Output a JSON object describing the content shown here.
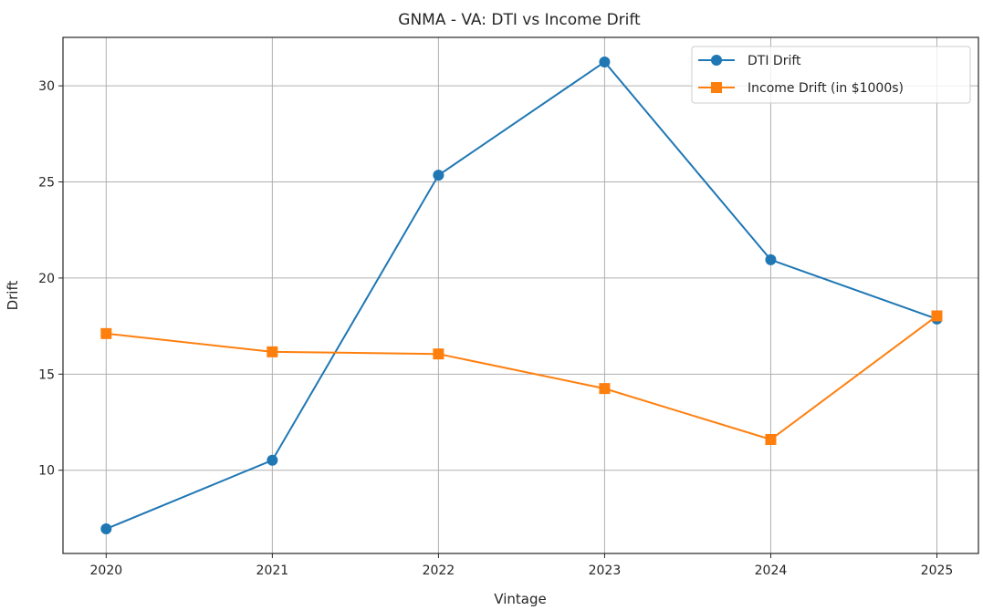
{
  "chart_data": {
    "type": "line",
    "title": "GNMA - VA: DTI vs Income Drift",
    "xlabel": "Vintage",
    "ylabel": "Drift",
    "x": [
      2020,
      2021,
      2022,
      2023,
      2024,
      2025
    ],
    "xticks": [
      "2020",
      "2021",
      "2022",
      "2023",
      "2024",
      "2025"
    ],
    "yticks": [
      10,
      15,
      20,
      25,
      30
    ],
    "xlim": [
      2019.74,
      2025.25
    ],
    "ylim": [
      5.67,
      32.52
    ],
    "grid": true,
    "legend_position": "top-right",
    "series": [
      {
        "name": "DTI Drift",
        "color": "#1f77b4",
        "marker": "circle",
        "values": [
          6.95,
          10.52,
          25.35,
          31.24,
          20.95,
          17.87
        ]
      },
      {
        "name": "Income Drift (in $1000s)",
        "color": "#ff7f0e",
        "marker": "square",
        "values": [
          17.11,
          16.16,
          16.05,
          14.25,
          11.6,
          18.03
        ]
      }
    ]
  }
}
